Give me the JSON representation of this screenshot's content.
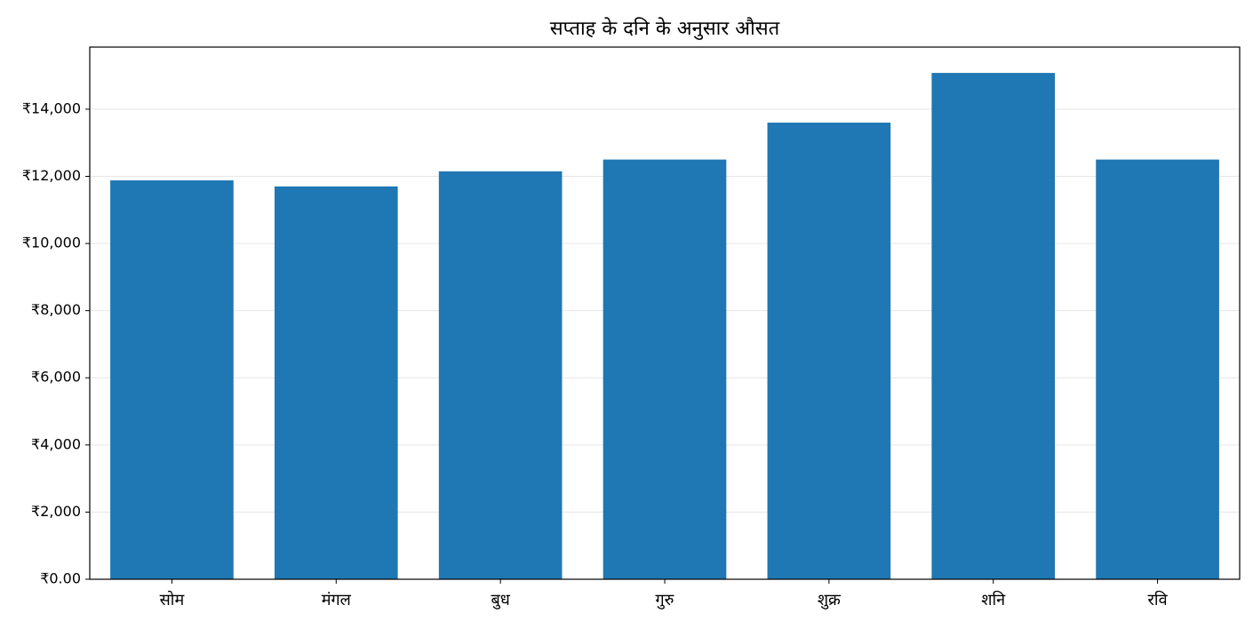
{
  "chart_data": {
    "type": "bar",
    "title": "सप्ताह के दनि के अनुसार औसत",
    "categories": [
      "सोम",
      "मंगल",
      "बुध",
      "गुरु",
      "शुक्र",
      "शनि",
      "रवि"
    ],
    "values": [
      11880,
      11700,
      12150,
      12500,
      13600,
      15080,
      12500
    ],
    "color": "#1f77b4",
    "ylim": [
      0,
      15850
    ],
    "yticks": [
      {
        "value": 0,
        "label": "₹0.00"
      },
      {
        "value": 2000,
        "label": "₹2,000"
      },
      {
        "value": 4000,
        "label": "₹4,000"
      },
      {
        "value": 6000,
        "label": "₹6,000"
      },
      {
        "value": 8000,
        "label": "₹8,000"
      },
      {
        "value": 10000,
        "label": "₹10,000"
      },
      {
        "value": 12000,
        "label": "₹12,000"
      },
      {
        "value": 14000,
        "label": "₹14,000"
      }
    ],
    "grid": true
  }
}
